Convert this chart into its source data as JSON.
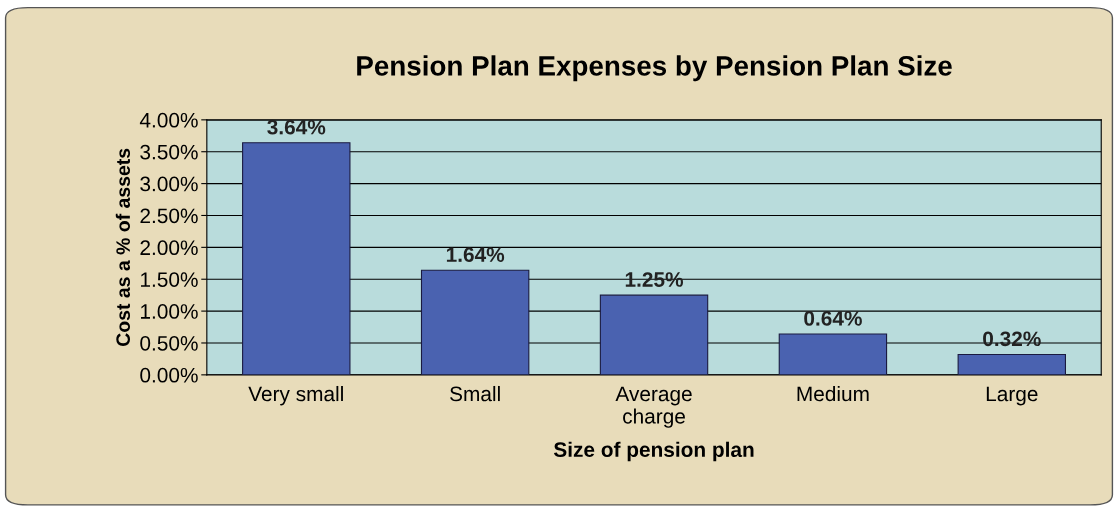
{
  "chart_data": {
    "type": "bar",
    "title": "Pension Plan Expenses by Pension Plan Size",
    "xlabel": "Size of pension plan",
    "ylabel": "Cost as a % of assets",
    "categories": [
      "Very small",
      "Small",
      "Average\ncharge",
      "Medium",
      "Large"
    ],
    "values": [
      3.64,
      1.64,
      1.25,
      0.64,
      0.32
    ],
    "value_labels": [
      "3.64%",
      "1.64%",
      "1.25%",
      "0.64%",
      "0.32%"
    ],
    "color": "#4a62b0",
    "ylim": [
      0,
      4
    ],
    "yticks": [
      {
        "value": 0,
        "label": "0.00%"
      },
      {
        "value": 0.5,
        "label": "0.50%"
      },
      {
        "value": 1,
        "label": "1.00%"
      },
      {
        "value": 1.5,
        "label": "1.50%"
      },
      {
        "value": 2,
        "label": "2.00%"
      },
      {
        "value": 2.5,
        "label": "2.50%"
      },
      {
        "value": 3,
        "label": "3.00%"
      },
      {
        "value": 3.5,
        "label": "3.50%"
      },
      {
        "value": 4,
        "label": "4.00%"
      }
    ],
    "grid": "y",
    "legend": false
  }
}
